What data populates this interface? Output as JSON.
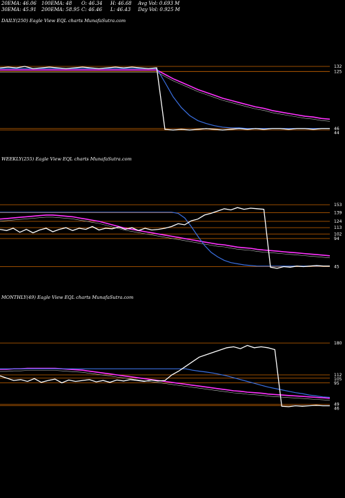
{
  "header": {
    "ema20": "20EMA: 46.06",
    "ema100": "100EMA: 48",
    "open": "O: 46.34",
    "high": "H: 46.68",
    "avg_vol": "Avg Vol: 0.693 M",
    "ema30": "30EMA: 45.91",
    "ema200": "200EMA: 58.95",
    "close": "C: 46.46",
    "low": "L: 46.43",
    "day_vol": "Day Vol: 0.925 M"
  },
  "colors": {
    "background": "#000000",
    "price": "#ffffff",
    "ema_fast": "#3a6fe0",
    "ema_slow": "#ff33ff",
    "level_line": "#cc6600",
    "ema_mid": "#bbbbbb"
  },
  "chart_data": [
    {
      "type": "line",
      "title": "DAILY(250) Eagle  View  EQL  charts MunafaSutra.com",
      "levels": [
        {
          "value": 132,
          "label": "132"
        },
        {
          "value": 125,
          "label": "125"
        },
        {
          "value": 46,
          "label": "46"
        },
        {
          "value": 44,
          "label": "44"
        }
      ],
      "series": [
        {
          "values": [
            130,
            131,
            130,
            132,
            129,
            130,
            131,
            130,
            129,
            130,
            131,
            130,
            129,
            130,
            131,
            130,
            131,
            130,
            129,
            130,
            45,
            44,
            45,
            44,
            45,
            46,
            45,
            44,
            45,
            46,
            45,
            46,
            45,
            46,
            46,
            45,
            46,
            46,
            45,
            46,
            46
          ]
        },
        {
          "values": [
            129,
            129,
            129,
            129,
            129,
            129,
            129,
            129,
            129,
            129,
            129,
            129,
            129,
            129,
            129,
            129,
            129,
            129,
            129,
            129,
            110,
            90,
            75,
            64,
            57,
            53,
            50,
            48,
            47,
            47,
            46,
            46,
            46,
            46,
            46,
            46,
            46,
            46,
            46,
            46,
            46
          ]
        },
        {
          "values": [
            127,
            127,
            127,
            127,
            127,
            127,
            127,
            127,
            127,
            127,
            127,
            127,
            127,
            127,
            127,
            127,
            127,
            127,
            127,
            127,
            121,
            115,
            110,
            105,
            100,
            96,
            92,
            88,
            85,
            82,
            79,
            76,
            74,
            71,
            69,
            67,
            65,
            63,
            62,
            60,
            59
          ]
        }
      ]
    },
    {
      "type": "line",
      "title": "WEEKLY(255) Eagle  View  EQL  charts MunafaSutra.com",
      "levels": [
        {
          "value": 153,
          "label": "153"
        },
        {
          "value": 139,
          "label": "139"
        },
        {
          "value": 124,
          "label": "124"
        },
        {
          "value": 113,
          "label": "113"
        },
        {
          "value": 102,
          "label": "102"
        },
        {
          "value": 94,
          "label": "94"
        },
        {
          "value": 45,
          "label": "45"
        }
      ],
      "series": [
        {
          "values": [
            110,
            108,
            112,
            105,
            110,
            104,
            109,
            112,
            106,
            110,
            113,
            108,
            112,
            110,
            115,
            109,
            112,
            111,
            114,
            110,
            113,
            108,
            112,
            109,
            110,
            112,
            115,
            120,
            118,
            125,
            128,
            135,
            138,
            142,
            146,
            144,
            148,
            145,
            147,
            146,
            145,
            44,
            42,
            45,
            44,
            46,
            45,
            46,
            47,
            46,
            46
          ]
        },
        {
          "values": [
            140,
            140,
            140,
            140,
            140,
            140,
            140,
            140,
            140,
            140,
            140,
            140,
            140,
            140,
            140,
            140,
            140,
            140,
            140,
            140,
            140,
            140,
            140,
            140,
            140,
            140,
            140,
            138,
            130,
            115,
            98,
            82,
            70,
            62,
            56,
            52,
            50,
            48,
            47,
            46,
            46,
            46,
            46,
            46,
            46,
            46,
            46,
            46,
            46,
            46,
            46
          ]
        },
        {
          "values": [
            128,
            129,
            130,
            131,
            132,
            133,
            134,
            135,
            135,
            134,
            133,
            132,
            130,
            128,
            126,
            124,
            121,
            118,
            115,
            112,
            110,
            108,
            106,
            104,
            102,
            100,
            98,
            96,
            94,
            92,
            90,
            88,
            86,
            84,
            83,
            81,
            79,
            78,
            77,
            75,
            74,
            73,
            72,
            71,
            70,
            69,
            68,
            67,
            66,
            65,
            64
          ]
        }
      ]
    },
    {
      "type": "line",
      "title": "MONTHLY(49) Eagle  View  EQL  charts MunafaSutra.com",
      "levels": [
        {
          "value": 180,
          "label": "180"
        },
        {
          "value": 112,
          "label": "112"
        },
        {
          "value": 105,
          "label": "105"
        },
        {
          "value": 95,
          "label": "95"
        },
        {
          "value": 49,
          "label": "49"
        },
        {
          "value": 46,
          "label": "46"
        }
      ],
      "series": [
        {
          "values": [
            110,
            105,
            100,
            102,
            98,
            104,
            96,
            100,
            103,
            95,
            101,
            98,
            100,
            102,
            97,
            100,
            96,
            101,
            99,
            102,
            100,
            98,
            101,
            99,
            100,
            112,
            120,
            130,
            140,
            150,
            155,
            160,
            165,
            170,
            172,
            168,
            175,
            170,
            172,
            170,
            166,
            45,
            44,
            46,
            45,
            46,
            47,
            46,
            46
          ]
        },
        {
          "values": [
            125,
            125,
            125,
            125,
            125,
            125,
            125,
            125,
            125,
            125,
            125,
            125,
            125,
            125,
            125,
            125,
            125,
            125,
            125,
            125,
            125,
            125,
            125,
            125,
            125,
            125,
            125,
            125,
            122,
            120,
            118,
            116,
            113,
            110,
            106,
            102,
            98,
            94,
            90,
            86,
            83,
            80,
            77,
            74,
            72,
            69,
            67,
            65,
            64
          ]
        },
        {
          "values": [
            124,
            124,
            125,
            125,
            126,
            126,
            126,
            126,
            126,
            125,
            124,
            123,
            122,
            120,
            118,
            116,
            114,
            112,
            110,
            108,
            106,
            104,
            102,
            100,
            98,
            96,
            94,
            92,
            90,
            88,
            86,
            84,
            82,
            80,
            78,
            77,
            75,
            74,
            73,
            71,
            70,
            69,
            68,
            67,
            66,
            65,
            64,
            63,
            62
          ]
        }
      ]
    }
  ]
}
